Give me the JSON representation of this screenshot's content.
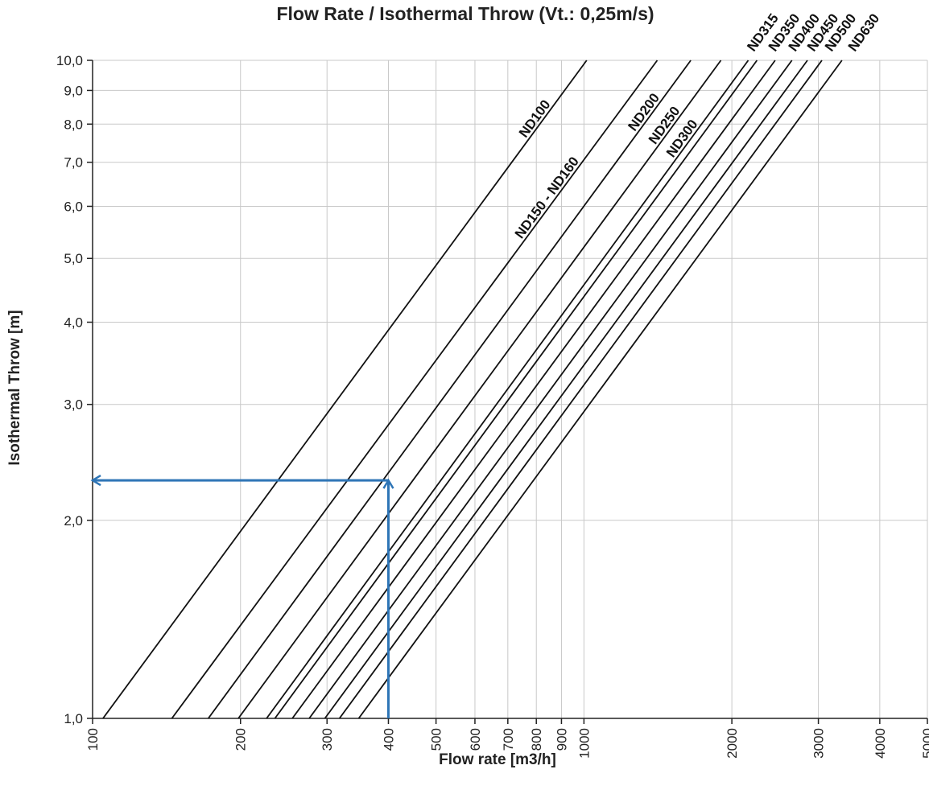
{
  "chart_data": {
    "type": "line",
    "title": "Flow Rate / Isothermal Throw (Vt.: 0,25m/s)",
    "xlabel": "Flow rate [m3/h]",
    "ylabel": "Isothermal Throw [m]",
    "xscale": "log",
    "yscale": "log",
    "xlim": [
      100,
      5000
    ],
    "ylim": [
      1.0,
      10.0
    ],
    "grid": true,
    "x_ticks": [
      100,
      200,
      300,
      400,
      500,
      600,
      700,
      800,
      900,
      1000,
      2000,
      3000,
      4000,
      5000
    ],
    "x_tick_labels": [
      "100",
      "200",
      "300",
      "400",
      "500",
      "600",
      "700",
      "800",
      "900",
      "1000",
      "2000",
      "3000",
      "4000",
      "5000"
    ],
    "y_ticks": [
      1,
      2,
      3,
      4,
      5,
      6,
      7,
      8,
      9,
      10
    ],
    "y_tick_labels": [
      "1,0",
      "2,0",
      "3,0",
      "4,0",
      "5,0",
      "6,0",
      "7,0",
      "8,0",
      "9,0",
      "10,0"
    ],
    "series": [
      {
        "name": "ND100",
        "x": [
          105,
          1013
        ],
        "y": [
          1.0,
          10.0
        ]
      },
      {
        "name": "ND150 - ND160",
        "x": [
          145,
          1410
        ],
        "y": [
          1.0,
          10.0
        ]
      },
      {
        "name": "ND200",
        "x": [
          172,
          1650
        ],
        "y": [
          1.0,
          10.0
        ]
      },
      {
        "name": "ND250",
        "x": [
          198,
          1900
        ],
        "y": [
          1.0,
          10.0
        ]
      },
      {
        "name": "ND300",
        "x": [
          226,
          2160
        ],
        "y": [
          1.0,
          10.0
        ]
      },
      {
        "name": "ND315",
        "x": [
          235,
          2250
        ],
        "y": [
          1.0,
          10.0
        ]
      },
      {
        "name": "ND350",
        "x": [
          255,
          2450
        ],
        "y": [
          1.0,
          10.0
        ]
      },
      {
        "name": "ND400",
        "x": [
          276,
          2650
        ],
        "y": [
          1.0,
          10.0
        ]
      },
      {
        "name": "ND450",
        "x": [
          297,
          2850
        ],
        "y": [
          1.0,
          10.0
        ]
      },
      {
        "name": "ND500",
        "x": [
          318,
          3050
        ],
        "y": [
          1.0,
          10.0
        ]
      },
      {
        "name": "ND630",
        "x": [
          348,
          3350
        ],
        "y": [
          1.0,
          10.0
        ]
      }
    ],
    "annotations": [
      {
        "type": "arrow",
        "color": "#2E75B6",
        "from": [
          400,
          1.0
        ],
        "to": [
          400,
          2.3
        ]
      },
      {
        "type": "arrow",
        "color": "#2E75B6",
        "from": [
          400,
          2.3
        ],
        "to": [
          100,
          2.3
        ]
      }
    ]
  }
}
